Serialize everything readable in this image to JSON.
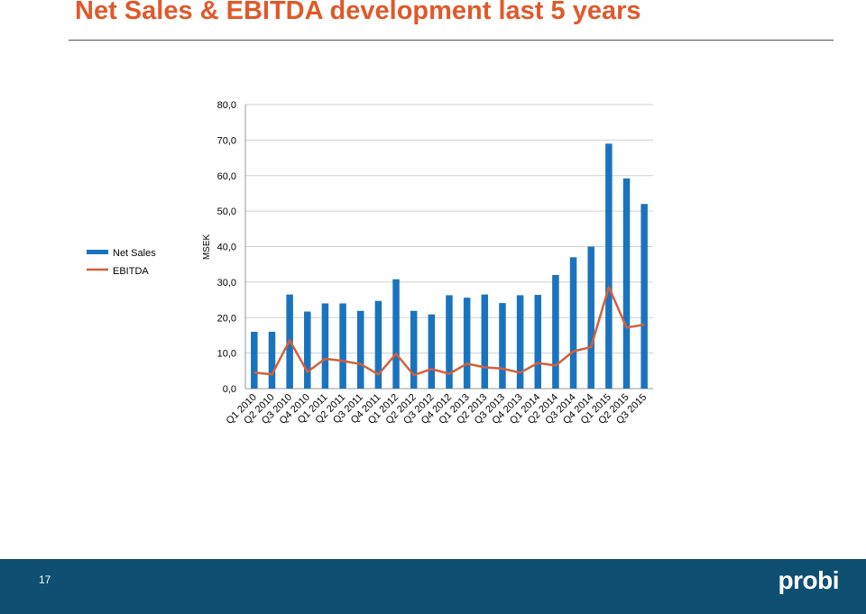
{
  "slide": {
    "title": "Net Sales & EBITDA development last 5 years",
    "page_number": "17",
    "logo_text": "probi"
  },
  "colors": {
    "title": "#e0592a",
    "net_sales": "#1a73be",
    "ebitda": "#d4603a",
    "footer": "#0e4f72"
  },
  "chart_data": {
    "type": "bar",
    "ylabel": "MSEK",
    "ylim": [
      0,
      80
    ],
    "yticks": [
      "0,0",
      "10,0",
      "20,0",
      "30,0",
      "40,0",
      "50,0",
      "60,0",
      "70,0",
      "80,0"
    ],
    "grid": true,
    "legend": "left",
    "categories": [
      "Q1 2010",
      "Q2 2010",
      "Q3 2010",
      "Q4 2010",
      "Q1 2011",
      "Q2 2011",
      "Q3 2011",
      "Q4 2011",
      "Q1 2012",
      "Q2 2012",
      "Q3 2012",
      "Q4 2012",
      "Q1 2013",
      "Q2 2013",
      "Q3 2013",
      "Q4 2013",
      "Q1 2014",
      "Q2 2014",
      "Q3 2014",
      "Q4 2014",
      "Q1 2015",
      "Q2 2015",
      "Q3 2015"
    ],
    "series": [
      {
        "name": "Net Sales",
        "type": "bar",
        "values": [
          16.0,
          16.0,
          26.5,
          21.7,
          24.0,
          24.0,
          21.9,
          24.7,
          30.8,
          21.9,
          20.9,
          26.3,
          25.6,
          26.5,
          24.1,
          26.3,
          26.4,
          32.0,
          37.0,
          40.0,
          69.0,
          59.2,
          52.0
        ]
      },
      {
        "name": "EBITDA",
        "type": "line",
        "values": [
          4.5,
          4.0,
          13.6,
          4.7,
          8.4,
          7.8,
          6.9,
          4.0,
          9.8,
          3.8,
          5.5,
          4.2,
          7.0,
          6.0,
          5.6,
          4.5,
          7.2,
          6.5,
          10.5,
          11.7,
          28.6,
          17.2,
          18.0
        ]
      }
    ]
  }
}
